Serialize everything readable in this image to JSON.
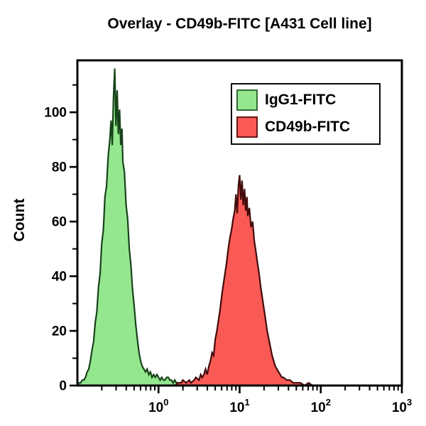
{
  "title": "Overlay - CD49b-FITC [A431 Cell line]",
  "colors": {
    "axis": "#000000",
    "background": "#ffffff",
    "igg1_fill": "#95E78F",
    "igg1_stroke": "#17431A",
    "cd49b_fill": "#F95A55",
    "cd49b_stroke": "#420B0B"
  },
  "chart_data": {
    "type": "area",
    "subtype": "flow-cytometry-histogram-overlay",
    "title": "Overlay - CD49b-FITC [A431 Cell line]",
    "x_axis": {
      "scale": "log10",
      "min_exp": -1,
      "max_exp": 3,
      "tick_label_base": "10",
      "major_tick_exponents": [
        0,
        1,
        2,
        3
      ],
      "minor_ticks_per_decade": "2-9",
      "grid": false
    },
    "y_axis": {
      "label": "Count",
      "min": 0,
      "max": 119,
      "major_ticks": [
        0,
        20,
        40,
        60,
        80,
        100
      ],
      "minor_ticks": [
        10,
        30,
        50,
        70,
        90,
        110
      ],
      "grid": false
    },
    "legend": {
      "position": "top-right-inside",
      "items": [
        "IgG1-FITC",
        "CD49b-FITC"
      ]
    },
    "series": [
      {
        "name": "IgG1-FITC",
        "fill": "#95E78F",
        "stroke": "#17431A",
        "swatch_border": "#2F6B2F",
        "peak_x_log10": -0.54,
        "peak_count": 116,
        "points_log10x_count": [
          [
            -1.0,
            0
          ],
          [
            -0.98,
            1
          ],
          [
            -0.96,
            1
          ],
          [
            -0.94,
            2
          ],
          [
            -0.92,
            2
          ],
          [
            -0.9,
            3
          ],
          [
            -0.88,
            5
          ],
          [
            -0.86,
            6
          ],
          [
            -0.84,
            9
          ],
          [
            -0.82,
            13
          ],
          [
            -0.8,
            16
          ],
          [
            -0.78,
            23
          ],
          [
            -0.76,
            27
          ],
          [
            -0.74,
            36
          ],
          [
            -0.72,
            41
          ],
          [
            -0.7,
            52
          ],
          [
            -0.68,
            57
          ],
          [
            -0.66,
            69
          ],
          [
            -0.64,
            73
          ],
          [
            -0.62,
            84
          ],
          [
            -0.6,
            90
          ],
          [
            -0.585,
            97
          ],
          [
            -0.57,
            88
          ],
          [
            -0.555,
            105
          ],
          [
            -0.54,
            116
          ],
          [
            -0.525,
            95
          ],
          [
            -0.51,
            108
          ],
          [
            -0.495,
            92
          ],
          [
            -0.48,
            101
          ],
          [
            -0.465,
            88
          ],
          [
            -0.45,
            94
          ],
          [
            -0.44,
            82
          ],
          [
            -0.42,
            78
          ],
          [
            -0.4,
            66
          ],
          [
            -0.38,
            61
          ],
          [
            -0.36,
            50
          ],
          [
            -0.34,
            44
          ],
          [
            -0.32,
            35
          ],
          [
            -0.3,
            29
          ],
          [
            -0.28,
            22
          ],
          [
            -0.26,
            17
          ],
          [
            -0.24,
            12
          ],
          [
            -0.22,
            9
          ],
          [
            -0.2,
            7
          ],
          [
            -0.18,
            6
          ],
          [
            -0.16,
            5
          ],
          [
            -0.14,
            6
          ],
          [
            -0.12,
            4
          ],
          [
            -0.1,
            5
          ],
          [
            -0.08,
            3
          ],
          [
            -0.06,
            4
          ],
          [
            -0.04,
            3
          ],
          [
            -0.02,
            4
          ],
          [
            0.0,
            3
          ],
          [
            0.02,
            2
          ],
          [
            0.04,
            3
          ],
          [
            0.06,
            2
          ],
          [
            0.08,
            2
          ],
          [
            0.1,
            3
          ],
          [
            0.12,
            3
          ],
          [
            0.14,
            2
          ],
          [
            0.16,
            2
          ],
          [
            0.18,
            1
          ],
          [
            0.2,
            2
          ],
          [
            0.22,
            1
          ],
          [
            0.24,
            1
          ],
          [
            0.26,
            0
          ]
        ]
      },
      {
        "name": "CD49b-FITC",
        "fill": "#F95A55",
        "stroke": "#420B0B",
        "swatch_border": "#6B1511",
        "peak_x_log10": 1.0,
        "peak_count": 77,
        "points_log10x_count": [
          [
            0.2,
            0
          ],
          [
            0.24,
            1
          ],
          [
            0.28,
            1
          ],
          [
            0.3,
            2
          ],
          [
            0.34,
            1
          ],
          [
            0.38,
            2
          ],
          [
            0.4,
            1
          ],
          [
            0.44,
            2
          ],
          [
            0.46,
            3
          ],
          [
            0.5,
            2
          ],
          [
            0.52,
            4
          ],
          [
            0.54,
            3
          ],
          [
            0.56,
            4
          ],
          [
            0.58,
            6
          ],
          [
            0.6,
            4
          ],
          [
            0.62,
            7
          ],
          [
            0.64,
            9
          ],
          [
            0.66,
            12
          ],
          [
            0.68,
            11
          ],
          [
            0.7,
            17
          ],
          [
            0.72,
            20
          ],
          [
            0.74,
            24
          ],
          [
            0.76,
            28
          ],
          [
            0.78,
            33
          ],
          [
            0.8,
            37
          ],
          [
            0.82,
            41
          ],
          [
            0.84,
            45
          ],
          [
            0.86,
            50
          ],
          [
            0.88,
            54
          ],
          [
            0.9,
            57
          ],
          [
            0.92,
            61
          ],
          [
            0.94,
            64
          ],
          [
            0.955,
            70
          ],
          [
            0.97,
            63
          ],
          [
            0.985,
            73
          ],
          [
            1.0,
            77
          ],
          [
            1.015,
            68
          ],
          [
            1.03,
            75
          ],
          [
            1.045,
            66
          ],
          [
            1.06,
            72
          ],
          [
            1.075,
            64
          ],
          [
            1.09,
            69
          ],
          [
            1.1,
            62
          ],
          [
            1.12,
            65
          ],
          [
            1.14,
            58
          ],
          [
            1.16,
            60
          ],
          [
            1.18,
            53
          ],
          [
            1.2,
            49
          ],
          [
            1.22,
            45
          ],
          [
            1.24,
            41
          ],
          [
            1.26,
            36
          ],
          [
            1.28,
            32
          ],
          [
            1.3,
            28
          ],
          [
            1.32,
            24
          ],
          [
            1.34,
            20
          ],
          [
            1.36,
            17
          ],
          [
            1.38,
            14
          ],
          [
            1.4,
            11
          ],
          [
            1.42,
            9
          ],
          [
            1.44,
            7
          ],
          [
            1.46,
            6
          ],
          [
            1.48,
            5
          ],
          [
            1.5,
            4
          ],
          [
            1.52,
            3
          ],
          [
            1.54,
            3
          ],
          [
            1.58,
            2
          ],
          [
            1.62,
            2
          ],
          [
            1.66,
            1
          ],
          [
            1.7,
            1
          ],
          [
            1.75,
            1
          ],
          [
            1.8,
            0
          ],
          [
            1.85,
            1
          ],
          [
            1.9,
            0
          ]
        ]
      }
    ]
  }
}
